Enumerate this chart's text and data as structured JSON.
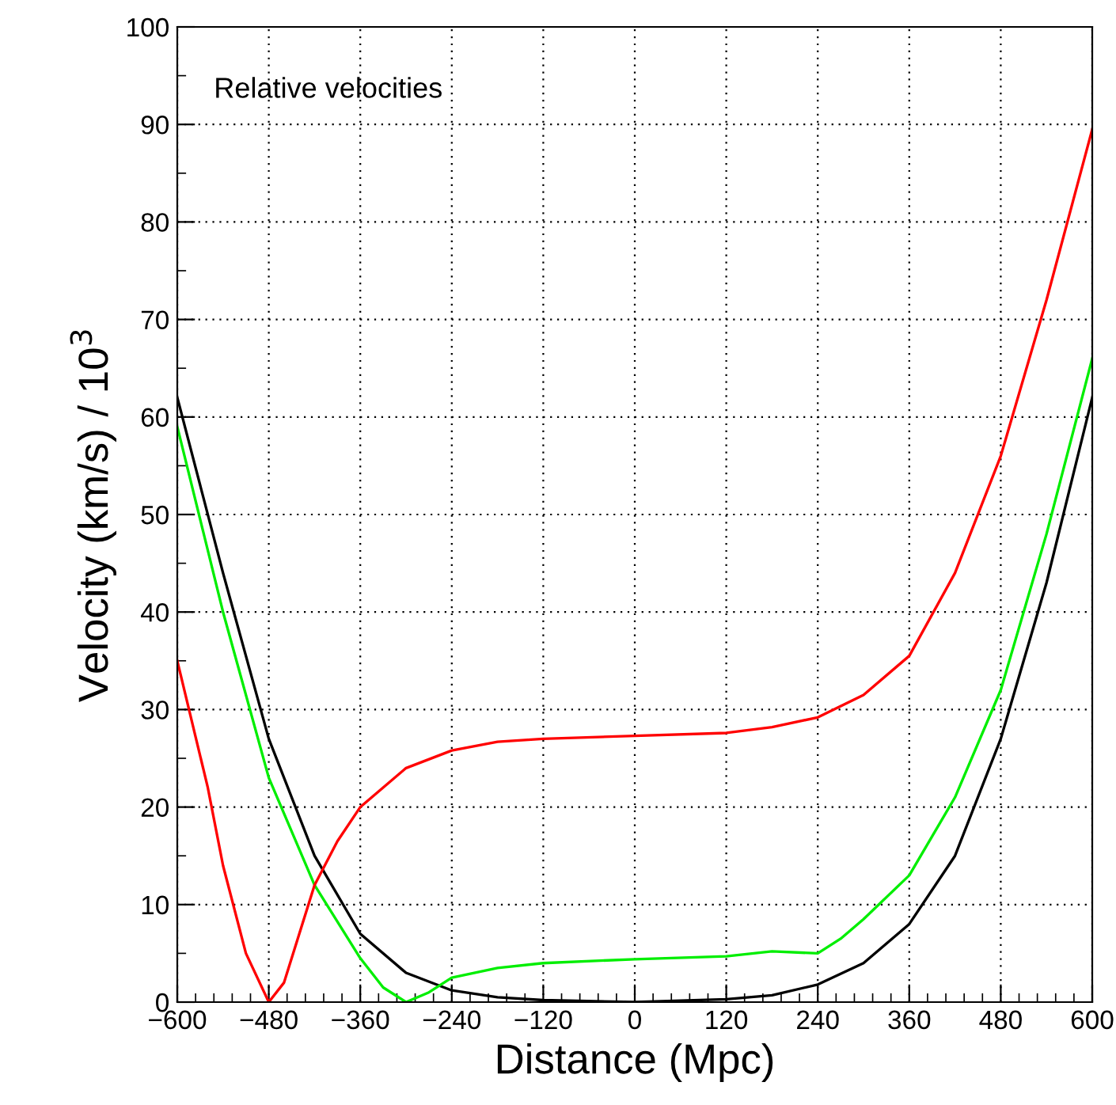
{
  "chart_data": {
    "type": "line",
    "xlabel": "Distance (Mpc)",
    "ylabel": "Velocity (km/s) / 10$^{3}$",
    "annotations": [
      "Relative velocities"
    ],
    "xlim": [
      -600,
      600
    ],
    "ylim": [
      0,
      100
    ],
    "xticks": [
      {
        "value": -600,
        "label": "−600"
      },
      {
        "value": -480,
        "label": "−480"
      },
      {
        "value": -360,
        "label": "−360"
      },
      {
        "value": -240,
        "label": "−240"
      },
      {
        "value": -120,
        "label": "−120"
      },
      0,
      120,
      240,
      360,
      480,
      600
    ],
    "yticks": [
      0,
      10,
      20,
      30,
      40,
      50,
      60,
      70,
      80,
      90,
      100
    ],
    "grid": true,
    "line_style": "solid",
    "series": [
      {
        "color": "#000000",
        "x": [
          -600,
          -540,
          -480,
          -420,
          -360,
          -300,
          -240,
          -180,
          -120,
          0,
          120,
          180,
          240,
          300,
          360,
          420,
          480,
          540,
          600
        ],
        "values": [
          62,
          44,
          27,
          15,
          7,
          3,
          1.2,
          0.5,
          0.2,
          0,
          0.3,
          0.7,
          1.8,
          4,
          8,
          15,
          27,
          43,
          62
        ]
      },
      {
        "color": "#00ee00",
        "x": [
          -600,
          -540,
          -480,
          -420,
          -360,
          -330,
          -300,
          -270,
          -240,
          -180,
          -120,
          0,
          120,
          180,
          240,
          270,
          300,
          360,
          420,
          480,
          540,
          600
        ],
        "values": [
          59,
          40,
          23,
          12,
          4.5,
          1.5,
          0,
          1,
          2.5,
          3.5,
          4,
          4.4,
          4.7,
          5.2,
          5,
          6.5,
          8.5,
          13,
          21,
          32,
          48,
          66
        ]
      },
      {
        "color": "#ff0000",
        "x": [
          -600,
          -560,
          -540,
          -510,
          -480,
          -460,
          -440,
          -420,
          -390,
          -360,
          -300,
          -240,
          -180,
          -120,
          0,
          120,
          180,
          240,
          300,
          360,
          420,
          480,
          540,
          600
        ],
        "values": [
          35,
          22,
          14,
          5,
          0,
          2,
          7,
          12,
          16.5,
          20,
          24,
          25.8,
          26.7,
          27,
          27.3,
          27.6,
          28.2,
          29.2,
          31.5,
          35.5,
          44,
          56,
          72,
          89.5
        ]
      }
    ]
  }
}
